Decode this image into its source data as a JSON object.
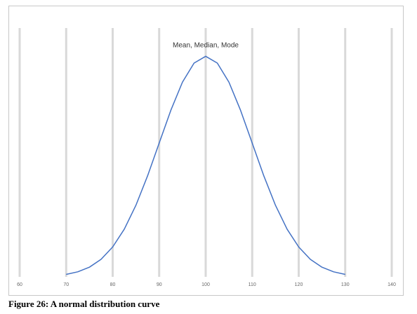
{
  "chart_data": {
    "type": "line",
    "annotation": "Mean, Median, Mode",
    "caption": "Figure 26: A normal distribution curve",
    "x": [
      70,
      72.5,
      75,
      77.5,
      80,
      82.5,
      85,
      87.5,
      90,
      92.5,
      95,
      97.5,
      100,
      102.5,
      105,
      107.5,
      110,
      112.5,
      115,
      117.5,
      120,
      122.5,
      125,
      127.5,
      130
    ],
    "values": [
      0.00044,
      0.00091,
      0.00175,
      0.00317,
      0.0054,
      0.00863,
      0.01295,
      0.01826,
      0.0242,
      0.03011,
      0.03521,
      0.03866,
      0.03989,
      0.03866,
      0.03521,
      0.03011,
      0.0242,
      0.01826,
      0.01295,
      0.00863,
      0.0054,
      0.00317,
      0.00175,
      0.00091,
      0.00044
    ],
    "color": "#4472c4",
    "xlim": [
      60,
      140
    ],
    "xticks": [
      60,
      70,
      80,
      90,
      100,
      110,
      120,
      130,
      140
    ],
    "ylim": [
      0,
      0.045
    ],
    "grid": true
  }
}
